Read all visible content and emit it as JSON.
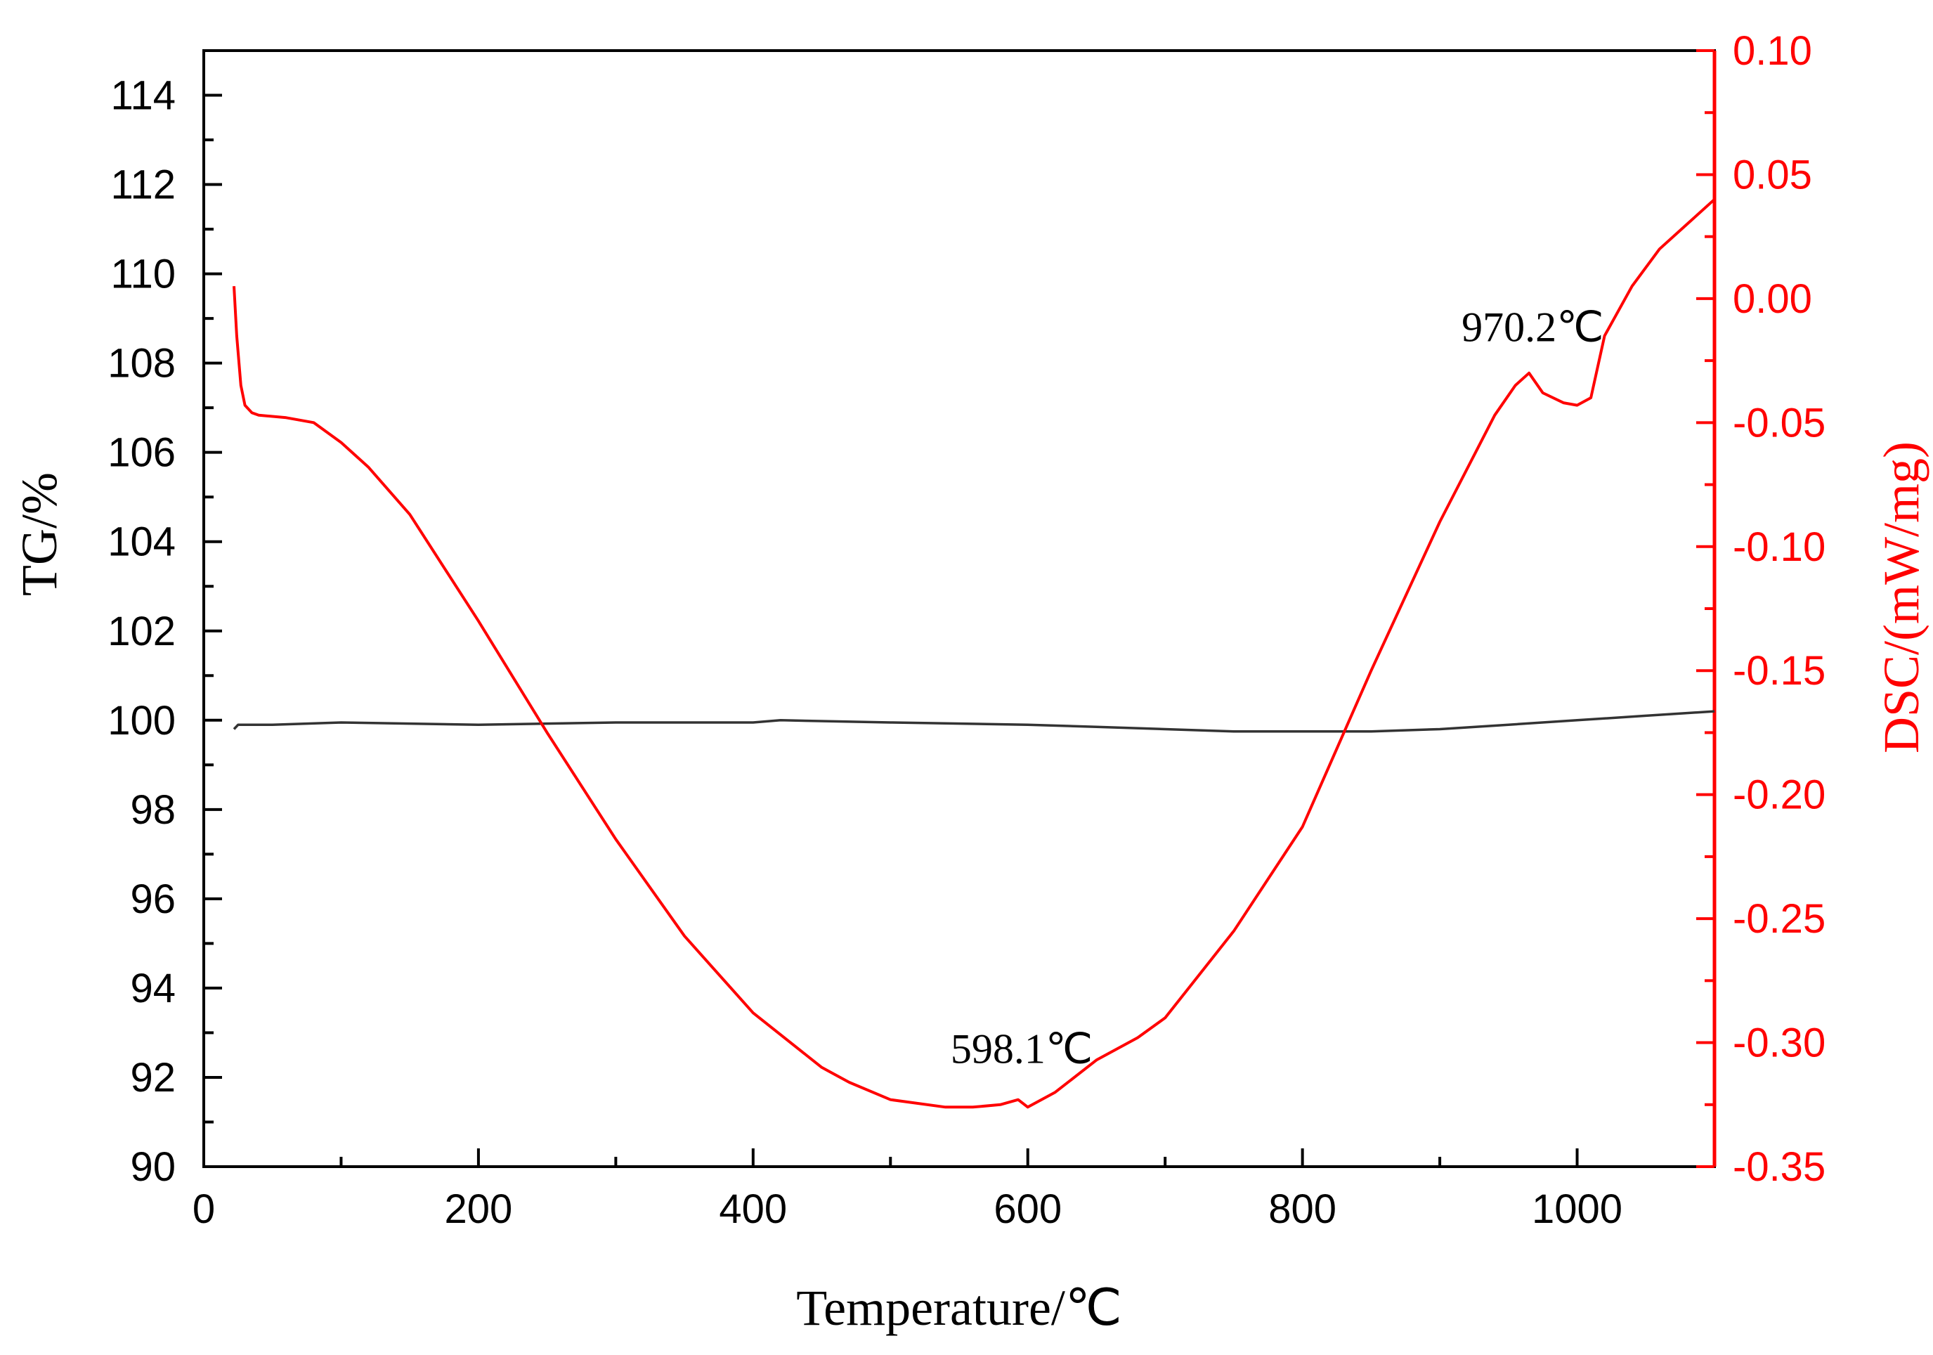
{
  "colors": {
    "left_axis": "#000000",
    "right_axis": "#ff0000",
    "tg_line": "#333333",
    "dsc_line": "#ff0000"
  },
  "chart_data": {
    "type": "line",
    "xlabel": "Temperature/℃",
    "ylabel_left": "TG/%",
    "ylabel_right": "DSC/(mW/mg)",
    "xlim": [
      0,
      1100
    ],
    "ylim_left": [
      90,
      115
    ],
    "ylim_right": [
      -0.35,
      0.1
    ],
    "x_ticks": [
      0,
      200,
      400,
      600,
      800,
      1000
    ],
    "x_tick_labels": [
      "0",
      "200",
      "400",
      "600",
      "800",
      "1000"
    ],
    "y_left_ticks": [
      90,
      92,
      94,
      96,
      98,
      100,
      102,
      104,
      106,
      108,
      110,
      112,
      114
    ],
    "y_left_tick_labels": [
      "90",
      "92",
      "94",
      "96",
      "98",
      "100",
      "102",
      "104",
      "106",
      "108",
      "110",
      "112",
      "114"
    ],
    "y_right_ticks": [
      -0.35,
      -0.3,
      -0.25,
      -0.2,
      -0.15,
      -0.1,
      -0.05,
      0.0,
      0.05,
      0.1
    ],
    "y_right_tick_labels": [
      "-0.35",
      "-0.30",
      "-0.25",
      "-0.20",
      "-0.15",
      "-0.10",
      "-0.05",
      "0.00",
      "0.05",
      "0.10"
    ],
    "series": [
      {
        "name": "TG",
        "axis": "left",
        "x": [
          22,
          25,
          50,
          100,
          200,
          300,
          400,
          420,
          500,
          600,
          650,
          700,
          750,
          800,
          850,
          900,
          950,
          1000,
          1050,
          1100
        ],
        "y": [
          99.8,
          99.9,
          99.9,
          99.95,
          99.9,
          99.95,
          99.95,
          100.0,
          99.95,
          99.9,
          99.85,
          99.8,
          99.75,
          99.75,
          99.75,
          99.8,
          99.9,
          100.0,
          100.1,
          100.2
        ]
      },
      {
        "name": "DSC",
        "axis": "right",
        "x": [
          22,
          24,
          27,
          30,
          35,
          40,
          60,
          80,
          100,
          120,
          150,
          200,
          250,
          300,
          350,
          400,
          450,
          470,
          500,
          540,
          560,
          580,
          593,
          600,
          620,
          650,
          680,
          700,
          750,
          800,
          850,
          900,
          940,
          955,
          965,
          975,
          990,
          1000,
          1010,
          1020,
          1040,
          1060,
          1080,
          1100
        ],
        "y": [
          0.005,
          -0.015,
          -0.035,
          -0.043,
          -0.046,
          -0.047,
          -0.048,
          -0.05,
          -0.058,
          -0.068,
          -0.087,
          -0.13,
          -0.175,
          -0.218,
          -0.257,
          -0.288,
          -0.31,
          -0.316,
          -0.323,
          -0.326,
          -0.326,
          -0.325,
          -0.323,
          -0.326,
          -0.32,
          -0.307,
          -0.298,
          -0.29,
          -0.255,
          -0.213,
          -0.15,
          -0.09,
          -0.047,
          -0.035,
          -0.03,
          -0.038,
          -0.042,
          -0.043,
          -0.04,
          -0.015,
          0.005,
          0.02,
          0.03,
          0.04
        ]
      }
    ],
    "annotations": [
      {
        "text": "598.1℃",
        "x": 598.1
      },
      {
        "text": "970.2℃",
        "x": 970.2
      }
    ]
  }
}
